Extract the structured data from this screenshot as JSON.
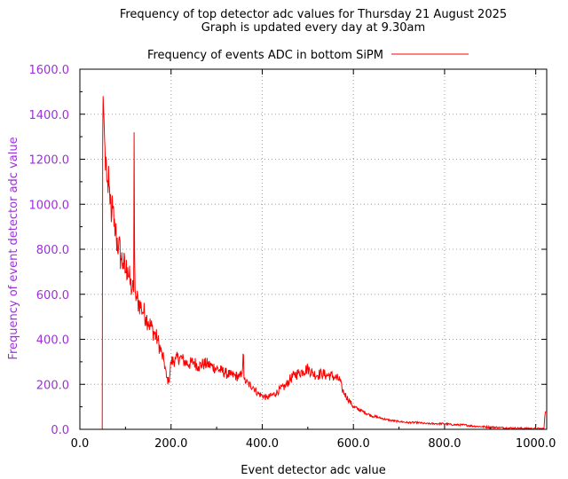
{
  "colors": {
    "series": "#ff0000",
    "ytick": "#9b30d9",
    "ylabel": "#9b30d9",
    "grid": "#a0a0a0",
    "axis": "#000000"
  },
  "chart_data": {
    "type": "line",
    "title": "Frequency of top detector adc values for Thursday 21 August 2025",
    "subtitle": "Graph is updated every day at 9.30am",
    "xlabel": "Event detector adc value",
    "ylabel": "Frequency of event detector adc value",
    "xlim": [
      0,
      1024
    ],
    "ylim": [
      0,
      1600
    ],
    "xticks": [
      "0.0",
      "200.0",
      "400.0",
      "600.0",
      "800.0",
      "1000.0"
    ],
    "xtick_values": [
      0,
      200,
      400,
      600,
      800,
      1000
    ],
    "yticks": [
      "0.0",
      "200.0",
      "400.0",
      "600.0",
      "800.0",
      "1000.0",
      "1200.0",
      "1400.0",
      "1600.0"
    ],
    "ytick_values": [
      0,
      200,
      400,
      600,
      800,
      1000,
      1200,
      1400,
      1600
    ],
    "grid": true,
    "legend_position": "top-center",
    "series": [
      {
        "name": "Frequency of events ADC in bottom SiPM",
        "x": [
          48,
          49,
          50,
          51,
          52,
          53,
          54,
          55,
          56,
          58,
          60,
          62,
          64,
          66,
          68,
          70,
          72,
          75,
          78,
          80,
          85,
          90,
          95,
          100,
          105,
          110,
          115,
          118,
          119,
          120,
          121,
          122,
          125,
          130,
          135,
          140,
          145,
          150,
          160,
          170,
          180,
          185,
          190,
          195,
          200,
          210,
          220,
          230,
          240,
          250,
          260,
          270,
          280,
          290,
          300,
          310,
          320,
          330,
          340,
          350,
          355,
          359,
          360,
          361,
          365,
          370,
          380,
          390,
          400,
          410,
          420,
          430,
          440,
          450,
          460,
          470,
          480,
          490,
          500,
          510,
          520,
          530,
          540,
          550,
          560,
          570,
          575,
          580,
          590,
          600,
          620,
          640,
          660,
          680,
          700,
          720,
          740,
          760,
          780,
          800,
          820,
          840,
          860,
          880,
          900,
          920,
          940,
          960,
          980,
          1000,
          1010,
          1018,
          1020,
          1022
        ],
        "y": [
          0,
          0,
          1300,
          1480,
          1420,
          1380,
          1300,
          1250,
          1150,
          1200,
          1100,
          1050,
          1080,
          1000,
          1020,
          950,
          980,
          900,
          880,
          850,
          820,
          760,
          740,
          700,
          720,
          650,
          620,
          610,
          1320,
          800,
          620,
          600,
          580,
          560,
          540,
          520,
          500,
          480,
          440,
          400,
          330,
          300,
          230,
          210,
          300,
          310,
          320,
          300,
          290,
          300,
          280,
          290,
          290,
          280,
          270,
          260,
          250,
          240,
          240,
          230,
          250,
          330,
          230,
          220,
          210,
          200,
          190,
          160,
          150,
          140,
          150,
          160,
          180,
          190,
          220,
          240,
          250,
          260,
          270,
          250,
          240,
          250,
          240,
          240,
          230,
          220,
          180,
          160,
          130,
          100,
          80,
          60,
          50,
          40,
          35,
          30,
          30,
          25,
          25,
          25,
          20,
          20,
          15,
          12,
          10,
          8,
          6,
          5,
          4,
          3,
          3,
          3,
          60,
          80
        ]
      }
    ]
  }
}
